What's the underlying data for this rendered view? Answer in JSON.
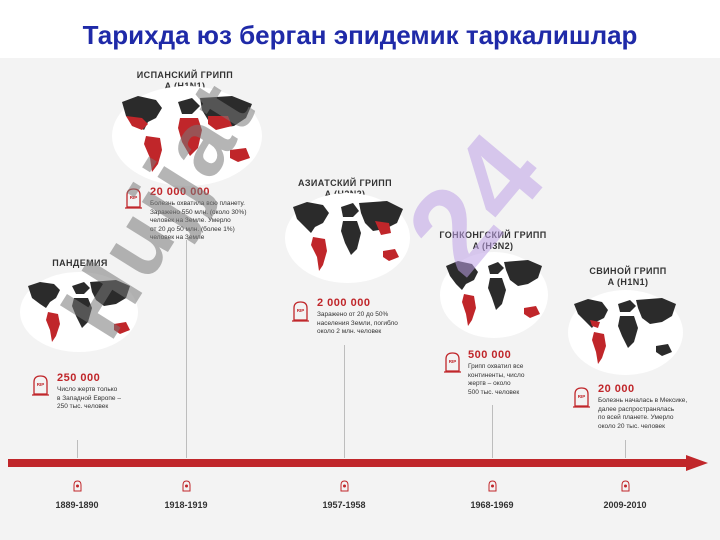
{
  "slide": {
    "title": "Тарихда юз берган эпидемик таркалишлар"
  },
  "watermark": {
    "brand": "Hujjat",
    "number": "24"
  },
  "epidemics": [
    {
      "key": "e1",
      "title": "ПАНДЕМИЯ",
      "stat": "250 000",
      "desc": "Число жертв только\nв Западной Европе –\n250 тыс. человек",
      "year": "1889-1890"
    },
    {
      "key": "e2",
      "title": "ИСПАНСКИЙ ГРИПП\nA (H1N1)",
      "stat": "20 000 000",
      "desc": "Болезнь охватила всю планету.\nЗаражено 550 млн. (около 30%)\nчеловек на Земле. Умерло\nот 20 до 50 млн. (более 1%)\nчеловек на Земле",
      "year": "1918-1919"
    },
    {
      "key": "e3",
      "title": "АЗИАТСКИЙ ГРИПП\nA (H2N2)",
      "stat": "2 000 000",
      "desc": "Заражено от 20 до 50%\nнаселения Земли, погибло\nоколо 2 млн. человек",
      "year": "1957-1958"
    },
    {
      "key": "e4",
      "title": "ГОНКОНГСКИЙ ГРИПП\nA (H3N2)",
      "stat": "500 000",
      "desc": "Грипп охватил все\nконтиненты, число\nжертв – около\n500 тыс. человек",
      "year": "1968-1969"
    },
    {
      "key": "e5",
      "title": "СВИНОЙ ГРИПП\nA (H1N1)",
      "stat": "20 000",
      "desc": "Болезнь началась в Мексике,\nдалее распространялась\nпо всей планете. Умерло\nоколо 20 тыс. человек",
      "year": "2009-2010"
    }
  ],
  "colors": {
    "title": "#1f2aa8",
    "accent": "#c0262a",
    "map_dark": "#2b2b2b",
    "watermark_purple": "#d9c8ef",
    "watermark_gray": "#8a8a8a"
  },
  "icons": {
    "rip": "tombstone-rip-icon",
    "timeline_marker": "virus-marker-icon"
  }
}
